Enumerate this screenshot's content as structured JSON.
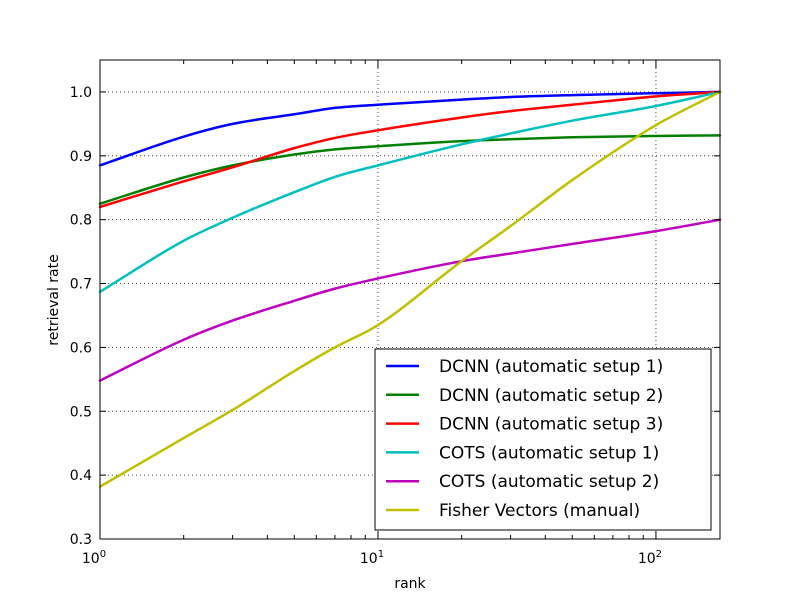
{
  "chart_data": {
    "type": "line",
    "title": "",
    "xlabel": "rank",
    "ylabel": "retrieval rate",
    "x_scale": "log",
    "xlim": [
      1,
      170
    ],
    "ylim": [
      0.3,
      1.05
    ],
    "grid": true,
    "legend_position": "lower-right",
    "x_ticks": [
      {
        "value": 1,
        "base": "10",
        "exp": "0"
      },
      {
        "value": 10,
        "base": "10",
        "exp": "1"
      },
      {
        "value": 100,
        "base": "10",
        "exp": "2"
      }
    ],
    "y_ticks": [
      {
        "value": 0.3,
        "label": "0.3"
      },
      {
        "value": 0.4,
        "label": "0.4"
      },
      {
        "value": 0.5,
        "label": "0.5"
      },
      {
        "value": 0.6,
        "label": "0.6"
      },
      {
        "value": 0.7,
        "label": "0.7"
      },
      {
        "value": 0.8,
        "label": "0.8"
      },
      {
        "value": 0.9,
        "label": "0.9"
      },
      {
        "value": 1.0,
        "label": "1.0"
      }
    ],
    "series": [
      {
        "name": "DCNN (automatic setup 1)",
        "color": "#0000ff",
        "x": [
          1,
          2,
          3,
          5,
          7,
          10,
          20,
          30,
          50,
          100,
          170
        ],
        "y": [
          0.885,
          0.93,
          0.95,
          0.965,
          0.975,
          0.98,
          0.988,
          0.992,
          0.995,
          0.998,
          1.0
        ]
      },
      {
        "name": "DCNN (automatic setup 2)",
        "color": "#008000",
        "x": [
          1,
          2,
          3,
          5,
          7,
          10,
          20,
          30,
          50,
          100,
          170
        ],
        "y": [
          0.825,
          0.866,
          0.885,
          0.902,
          0.91,
          0.915,
          0.923,
          0.926,
          0.929,
          0.931,
          0.932
        ]
      },
      {
        "name": "DCNN (automatic setup 3)",
        "color": "#ff0000",
        "x": [
          1,
          2,
          3,
          5,
          7,
          10,
          20,
          30,
          50,
          100,
          170
        ],
        "y": [
          0.82,
          0.86,
          0.882,
          0.912,
          0.928,
          0.94,
          0.96,
          0.97,
          0.98,
          0.993,
          1.0
        ]
      },
      {
        "name": "COTS (automatic setup 1)",
        "color": "#00bfbf",
        "x": [
          1,
          2,
          3,
          5,
          7,
          10,
          20,
          30,
          50,
          100,
          170
        ],
        "y": [
          0.687,
          0.767,
          0.803,
          0.843,
          0.867,
          0.885,
          0.918,
          0.935,
          0.955,
          0.978,
          1.0
        ]
      },
      {
        "name": "COTS (automatic setup 2)",
        "color": "#bf00bf",
        "x": [
          1,
          2,
          3,
          5,
          7,
          10,
          20,
          30,
          50,
          100,
          170
        ],
        "y": [
          0.548,
          0.612,
          0.642,
          0.673,
          0.692,
          0.708,
          0.735,
          0.747,
          0.762,
          0.782,
          0.8
        ]
      },
      {
        "name": "Fisher Vectors (manual)",
        "color": "#bfbf00",
        "x": [
          1,
          2,
          3,
          5,
          7,
          10,
          20,
          30,
          50,
          100,
          170
        ],
        "y": [
          0.382,
          0.458,
          0.502,
          0.563,
          0.6,
          0.635,
          0.735,
          0.79,
          0.862,
          0.948,
          1.0
        ]
      }
    ]
  }
}
